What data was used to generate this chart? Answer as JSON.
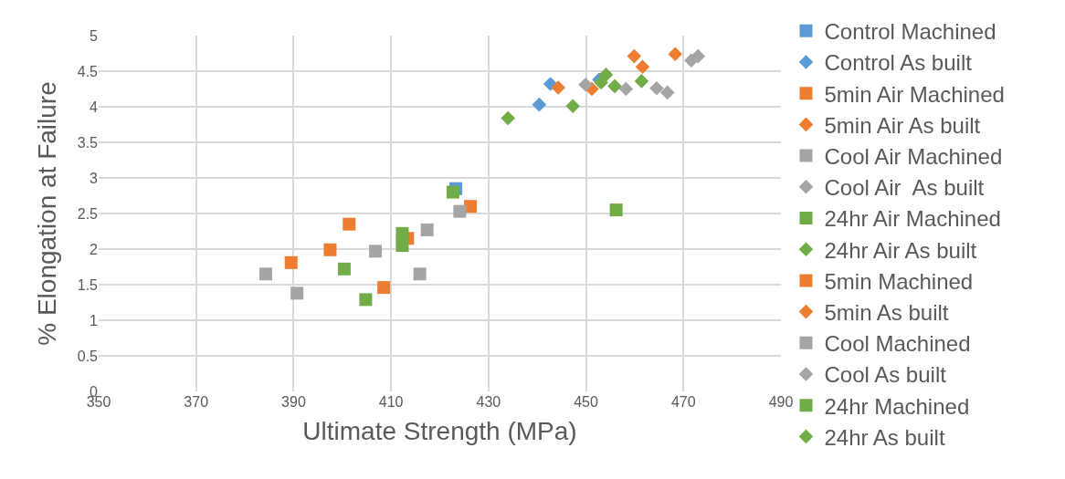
{
  "chart_data": {
    "type": "scatter",
    "xlabel": "Ultimate Strength (MPa)",
    "ylabel": "% Elongation at Failure",
    "xlim": [
      350,
      490
    ],
    "xticks": [
      350,
      370,
      390,
      410,
      430,
      450,
      470,
      490
    ],
    "ylim": [
      0,
      5
    ],
    "yticks": [
      0,
      0.5,
      1,
      1.5,
      2,
      2.5,
      3,
      3.5,
      4,
      4.5,
      5
    ],
    "grid": true,
    "legend": "right",
    "series": [
      {
        "name": "Control Machined",
        "color": "#5b9bd5",
        "marker": "square",
        "x": [
          423.3
        ],
        "values": [
          2.85
        ]
      },
      {
        "name": "Control As built",
        "color": "#5b9bd5",
        "marker": "diamond",
        "x": [
          440.4,
          442.7,
          452.7
        ],
        "values": [
          4.03,
          4.32,
          4.38
        ]
      },
      {
        "name": "5min Air Machined",
        "color": "#ed7d31",
        "marker": "square",
        "x": [
          426.3,
          401.4,
          413.4,
          397.5,
          389.5,
          408.5
        ],
        "values": [
          2.6,
          2.35,
          2.15,
          1.99,
          1.81,
          1.46
        ]
      },
      {
        "name": "5min Air As built",
        "color": "#ed7d31",
        "marker": "diamond",
        "x": [
          444.3,
          451.2,
          459.9,
          461.6,
          468.3
        ],
        "values": [
          4.27,
          4.25,
          4.71,
          4.56,
          4.74
        ]
      },
      {
        "name": "Cool Air Machined",
        "color": "#a5a5a5",
        "marker": "square",
        "x": [
          424.1,
          417.4,
          406.8,
          384.3,
          415.9,
          390.7
        ],
        "values": [
          2.53,
          2.27,
          1.97,
          1.65,
          1.65,
          1.38
        ]
      },
      {
        "name": "Cool Air  As built",
        "color": "#a5a5a5",
        "marker": "diamond",
        "x": [
          449.9,
          458.2,
          464.5,
          466.7,
          471.6,
          473
        ],
        "values": [
          4.31,
          4.25,
          4.26,
          4.2,
          4.65,
          4.71
        ]
      },
      {
        "name": "24hr Air Machined",
        "color": "#70ad47",
        "marker": "square",
        "x": [
          422.7,
          412.3,
          412.3,
          400.4,
          404.8,
          456.2
        ],
        "values": [
          2.8,
          2.22,
          2.05,
          1.72,
          1.29,
          2.55
        ]
      },
      {
        "name": "24hr Air As built",
        "color": "#70ad47",
        "marker": "diamond",
        "x": [
          434,
          447.3,
          453.1,
          454.1,
          455.9,
          461.4
        ],
        "values": [
          3.84,
          4.01,
          4.34,
          4.45,
          4.29,
          4.36
        ]
      },
      {
        "name": "5min Machined",
        "color": "#ed7d31",
        "marker": "square"
      },
      {
        "name": "5min As built",
        "color": "#ed7d31",
        "marker": "diamond"
      },
      {
        "name": "Cool Machined",
        "color": "#a5a5a5",
        "marker": "square"
      },
      {
        "name": "Cool As built",
        "color": "#a5a5a5",
        "marker": "diamond"
      },
      {
        "name": "24hr Machined",
        "color": "#70ad47",
        "marker": "square"
      },
      {
        "name": "24hr As built",
        "color": "#70ad47",
        "marker": "diamond"
      }
    ]
  }
}
